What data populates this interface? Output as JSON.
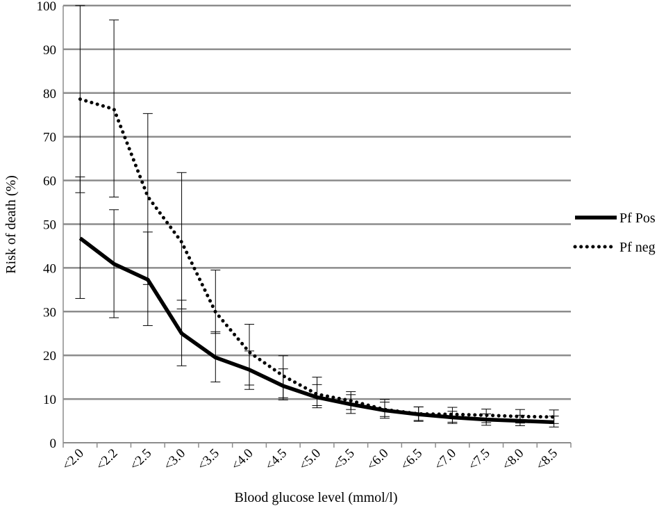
{
  "chart_data": {
    "type": "line",
    "title": "",
    "xlabel": "Blood glucose level (mmol/l)",
    "ylabel": "Risk of death (%)",
    "ylim": [
      0,
      100
    ],
    "yticks": [
      0,
      10,
      20,
      30,
      40,
      50,
      60,
      70,
      80,
      90,
      100
    ],
    "grid": "horizontal",
    "legend_position": "right",
    "categories": [
      "<2.0",
      "<2.2",
      "<2.5",
      "<3.0",
      "<3.5",
      "<4.0",
      "<4.5",
      "<5.0",
      "<5.5",
      "<6.0",
      "<6.5",
      "<7.0",
      "<7.5",
      "<8.0",
      "<8.5"
    ],
    "series": [
      {
        "name": "Pf Pos",
        "style": "solid",
        "color": "#000000",
        "values": [
          46.8,
          40.9,
          37.3,
          25.0,
          19.5,
          16.7,
          13.0,
          10.4,
          8.8,
          7.4,
          6.5,
          5.8,
          5.3,
          5.0,
          4.7
        ],
        "lower": [
          33.0,
          28.6,
          26.8,
          17.6,
          13.9,
          12.2,
          9.8,
          8.0,
          6.7,
          5.6,
          4.9,
          4.4,
          4.0,
          3.9,
          3.6
        ],
        "upper": [
          60.8,
          53.3,
          48.2,
          32.6,
          25.4,
          21.0,
          16.9,
          13.3,
          11.0,
          9.3,
          8.2,
          7.2,
          6.6,
          6.3,
          6.1
        ]
      },
      {
        "name": "Pf neg",
        "style": "dotted",
        "color": "#000000",
        "values": [
          78.6,
          76.3,
          56.3,
          45.9,
          29.9,
          20.7,
          15.3,
          11.1,
          9.6,
          7.6,
          6.6,
          6.5,
          6.3,
          6.0,
          5.9
        ],
        "lower": [
          57.2,
          56.2,
          36.2,
          30.6,
          25.0,
          13.2,
          10.3,
          8.5,
          7.6,
          6.0,
          5.1,
          4.7,
          4.6,
          4.5,
          4.4
        ],
        "upper": [
          100.0,
          96.7,
          75.3,
          61.8,
          39.5,
          27.1,
          19.9,
          15.0,
          11.7,
          9.9,
          8.2,
          8.1,
          7.7,
          7.6,
          7.5
        ]
      }
    ]
  }
}
